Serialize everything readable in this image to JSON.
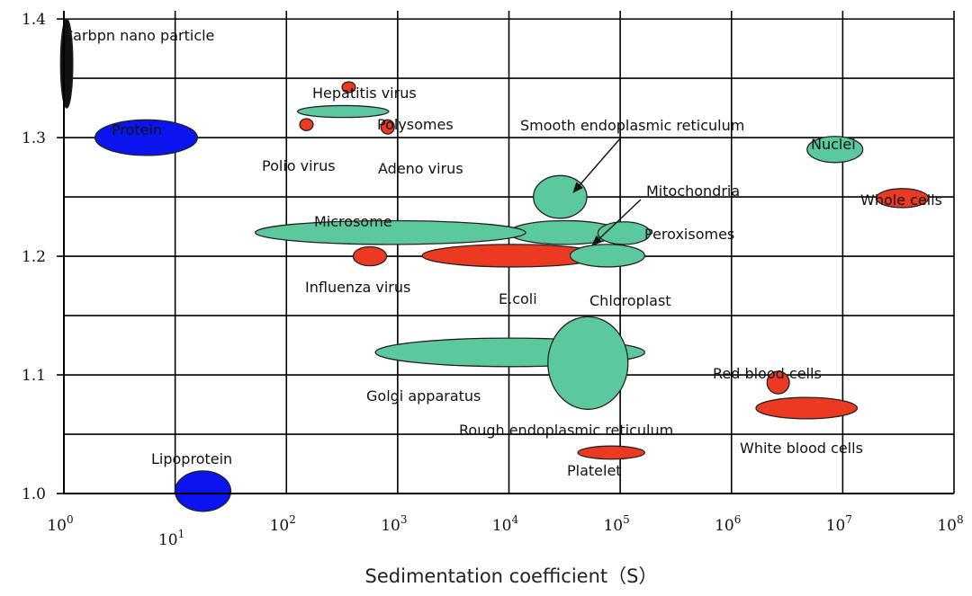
{
  "chart_data": {
    "type": "scatter",
    "xlabel": "Sedimentation coefficient（S）",
    "ylabel": "",
    "x_scale": "log",
    "xlim_exp": [
      0,
      8
    ],
    "ylim": [
      1.0,
      1.4
    ],
    "grid": true,
    "x_ticks": [
      {
        "base": "10",
        "exp": "0"
      },
      {
        "base": "10",
        "exp": "1"
      },
      {
        "base": "10",
        "exp": "2"
      },
      {
        "base": "10",
        "exp": "3"
      },
      {
        "base": "10",
        "exp": "4"
      },
      {
        "base": "10",
        "exp": "5"
      },
      {
        "base": "10",
        "exp": "6"
      },
      {
        "base": "10",
        "exp": "7"
      },
      {
        "base": "10",
        "exp": "8"
      }
    ],
    "y_ticks": [
      "1.0",
      "1.1",
      "1.2",
      "1.3",
      "1.4"
    ],
    "y_tick_values": [
      1.0,
      1.1,
      1.2,
      1.3,
      1.4
    ],
    "colors": {
      "green": "#5cc8a0",
      "red": "#ec3a22",
      "blue": "#0a14ee",
      "black": "#111111"
    },
    "particles": [
      {
        "label": "Carbpn nano particle",
        "color": "black",
        "logS_min": -0.03,
        "logS_max": 0.08,
        "density_min": 1.325,
        "density_max": 1.4
      },
      {
        "label": "Protein",
        "color": "blue",
        "logS_min": 0.28,
        "logS_max": 1.2,
        "density_min": 1.285,
        "density_max": 1.315
      },
      {
        "label": "Hepatitis virus",
        "color": "red",
        "logS_min": 2.5,
        "logS_max": 2.62,
        "density_min": 1.338,
        "density_max": 1.347
      },
      {
        "label": "Polysomes",
        "color": "green",
        "logS_min": 2.1,
        "logS_max": 2.92,
        "density_min": 1.317,
        "density_max": 1.327
      },
      {
        "label": "Polio virus",
        "color": "red",
        "logS_min": 2.12,
        "logS_max": 2.24,
        "density_min": 1.306,
        "density_max": 1.316
      },
      {
        "label": "Adeno virus",
        "color": "red",
        "logS_min": 2.85,
        "logS_max": 2.97,
        "density_min": 1.303,
        "density_max": 1.315
      },
      {
        "label": "Nuclei",
        "color": "green",
        "logS_min": 6.68,
        "logS_max": 7.18,
        "density_min": 1.279,
        "density_max": 1.301
      },
      {
        "label": "Whole cells",
        "color": "red",
        "logS_min": 7.3,
        "logS_max": 7.77,
        "density_min": 1.241,
        "density_max": 1.257
      },
      {
        "label": "Smooth endoplasmic reticulum",
        "color": "green",
        "logS_min": 4.22,
        "logS_max": 4.7,
        "density_min": 1.232,
        "density_max": 1.268
      },
      {
        "label": "Mitochondria",
        "color": "green",
        "logS_min": 4.0,
        "logS_max": 5.0,
        "density_min": 1.21,
        "density_max": 1.23
      },
      {
        "label": "Peroxisomes",
        "color": "green",
        "logS_min": 4.8,
        "logS_max": 5.27,
        "density_min": 1.21,
        "density_max": 1.229
      },
      {
        "label": "Microsome",
        "color": "green",
        "logS_min": 1.72,
        "logS_max": 4.15,
        "density_min": 1.21,
        "density_max": 1.23
      },
      {
        "label": "E.coli",
        "color": "red",
        "logS_min": 3.22,
        "logS_max": 4.85,
        "density_min": 1.191,
        "density_max": 1.21
      },
      {
        "label": "Chloroplast",
        "color": "green",
        "logS_min": 4.55,
        "logS_max": 5.22,
        "density_min": 1.191,
        "density_max": 1.21
      },
      {
        "label": "Influenza virus",
        "color": "red",
        "logS_min": 2.6,
        "logS_max": 2.9,
        "density_min": 1.192,
        "density_max": 1.208
      },
      {
        "label": "Golgi apparatus",
        "color": "green",
        "logS_min": 2.8,
        "logS_max": 5.22,
        "density_min": 1.107,
        "density_max": 1.131
      },
      {
        "label": "Rough endoplasmic reticulum",
        "color": "green",
        "logS_min": 4.35,
        "logS_max": 5.07,
        "density_min": 1.071,
        "density_max": 1.149
      },
      {
        "label": "Red blood cells",
        "color": "red",
        "logS_min": 6.32,
        "logS_max": 6.52,
        "density_min": 1.084,
        "density_max": 1.103
      },
      {
        "label": "White blood cells",
        "color": "red",
        "logS_min": 6.22,
        "logS_max": 7.13,
        "density_min": 1.063,
        "density_max": 1.081
      },
      {
        "label": "Platelet",
        "color": "red",
        "logS_min": 4.62,
        "logS_max": 5.22,
        "density_min": 1.029,
        "density_max": 1.04
      },
      {
        "label": "Lipoprotein",
        "color": "blue",
        "logS_min": 1.0,
        "logS_max": 1.5,
        "density_min": 0.985,
        "density_max": 1.019
      }
    ],
    "annotations": [
      {
        "text": "Smooth endoplasmic reticulum",
        "points_to": "Smooth endoplasmic reticulum"
      },
      {
        "text": "Mitochondria",
        "points_to": "Mitochondria"
      }
    ]
  }
}
